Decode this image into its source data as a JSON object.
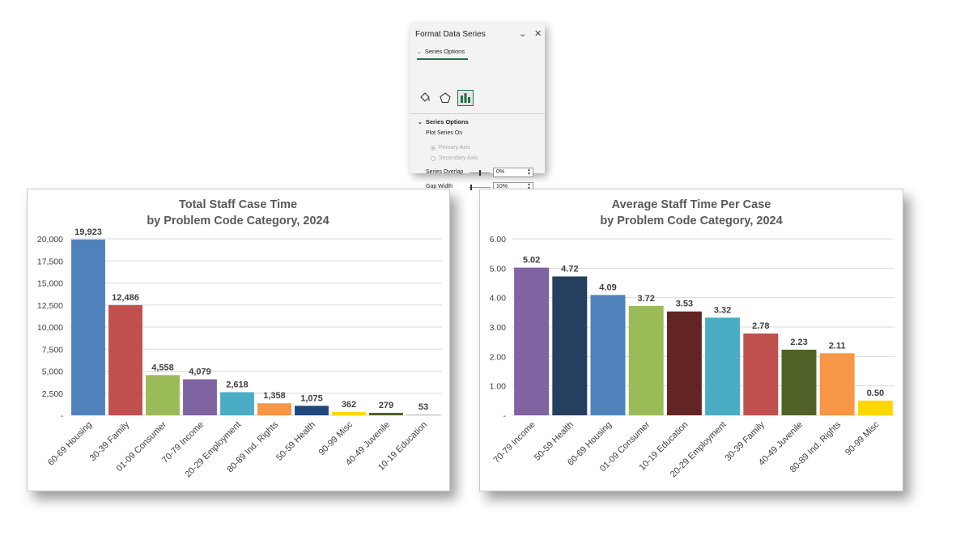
{
  "pane": {
    "title": "Format Data Series",
    "tab_label": "Series Options",
    "section_label": "Series Options",
    "plot_on_label": "Plot Series On",
    "primary_axis_label": "Primary Axis",
    "secondary_axis_label": "Secondary Axis",
    "overlap_label": "Series Overlap",
    "overlap_value": "0%",
    "gap_label": "Gap Width",
    "gap_value": "10%",
    "accent_color": "#217346",
    "icons": [
      "paint-bucket-icon",
      "pentagon-icon",
      "bar-chart-icon"
    ]
  },
  "chart_data": [
    {
      "type": "bar",
      "title": [
        "Total Staff Case Time",
        "by Problem Code Category, 2024"
      ],
      "categories": [
        "60-69 Housing",
        "30-39 Family",
        "01-09 Consumer",
        "70-79 Income",
        "20-29 Employment",
        "80-89 Ind. Rights",
        "50-59 Health",
        "90-99 Misc",
        "40-49 Juvenile",
        "10-19 Education"
      ],
      "values": [
        19923,
        12486,
        4558,
        4079,
        2618,
        1358,
        1075,
        362,
        279,
        53
      ],
      "data_labels": [
        "19,923",
        "12,486",
        "4,558",
        "4,079",
        "2,618",
        "1,358",
        "1,075",
        "362",
        "279",
        "53"
      ],
      "colors": [
        "#4f81bd",
        "#c0504d",
        "#9bbb59",
        "#8064a2",
        "#4bacc6",
        "#f79646",
        "#1f497d",
        "#ffd700",
        "#4f6228",
        "#c0c0c0"
      ],
      "ylim": [
        0,
        20000
      ],
      "yticks": [
        "-",
        "2,500",
        "5,000",
        "7,500",
        "10,000",
        "12,500",
        "15,000",
        "17,500",
        "20,000"
      ],
      "grid": true,
      "legend": "none"
    },
    {
      "type": "bar",
      "title": [
        "Average Staff Time Per Case",
        "by Problem Code Category, 2024"
      ],
      "categories": [
        "70-79 Income",
        "50-59 Health",
        "60-69 Housing",
        "01-09 Consumer",
        "10-19 Education",
        "20-29 Employment",
        "30-39 Family",
        "40-49 Juvenile",
        "80-89 Ind. Rights",
        "90-99 Misc"
      ],
      "values": [
        5.02,
        4.72,
        4.09,
        3.72,
        3.53,
        3.32,
        2.78,
        2.23,
        2.11,
        0.5
      ],
      "data_labels": [
        "5.02",
        "4.72",
        "4.09",
        "3.72",
        "3.53",
        "3.32",
        "2.78",
        "2.23",
        "2.11",
        "0.50"
      ],
      "colors": [
        "#8064a2",
        "#243f60",
        "#4f81bd",
        "#9bbb59",
        "#632523",
        "#4bacc6",
        "#c0504d",
        "#4f6228",
        "#f79646",
        "#ffd700"
      ],
      "ylim": [
        0,
        6
      ],
      "yticks": [
        "-",
        "1.00",
        "2.00",
        "3.00",
        "4.00",
        "5.00",
        "6.00"
      ],
      "grid": true,
      "legend": "none"
    }
  ]
}
